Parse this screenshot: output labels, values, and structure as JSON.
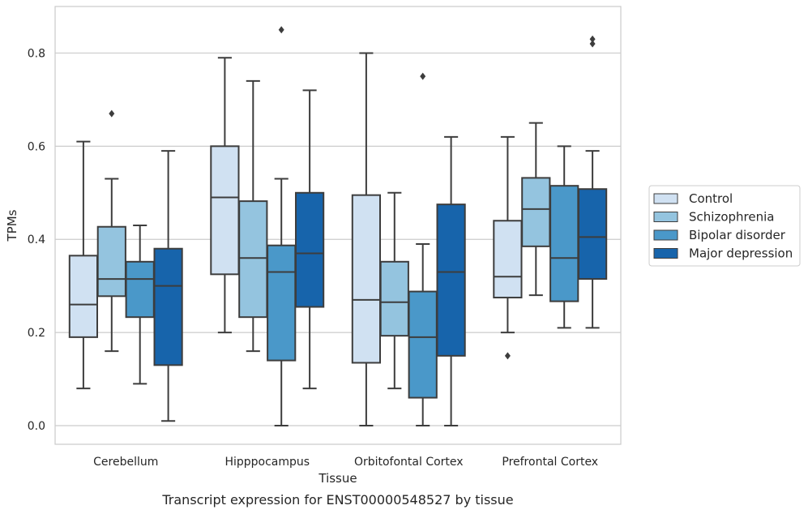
{
  "chart_data": {
    "type": "box",
    "caption": "Transcript expression for ENST00000548527 by tissue",
    "xlabel": "Tissue",
    "ylabel": "TPMs",
    "ylim": [
      -0.04,
      0.9
    ],
    "yticks": [
      0.0,
      0.2,
      0.4,
      0.6,
      0.8
    ],
    "ytick_labels": [
      "0.0",
      "0.2",
      "0.4",
      "0.6",
      "0.8"
    ],
    "grid": "horizontal",
    "legend_position": "right",
    "categories": [
      "Cerebellum",
      "Hipppocampus",
      "Orbitofontal Cortex",
      "Prefrontal Cortex"
    ],
    "series": [
      {
        "name": "Control",
        "color": "#d0e1f2",
        "boxes": [
          {
            "whislo": 0.08,
            "q1": 0.19,
            "med": 0.26,
            "q3": 0.365,
            "whishi": 0.61,
            "fliers": []
          },
          {
            "whislo": 0.2,
            "q1": 0.325,
            "med": 0.49,
            "q3": 0.6,
            "whishi": 0.79,
            "fliers": []
          },
          {
            "whislo": 0.0,
            "q1": 0.135,
            "med": 0.27,
            "q3": 0.495,
            "whishi": 0.8,
            "fliers": []
          },
          {
            "whislo": 0.2,
            "q1": 0.275,
            "med": 0.32,
            "q3": 0.44,
            "whishi": 0.62,
            "fliers": [
              0.15
            ]
          }
        ]
      },
      {
        "name": "Schizophrenia",
        "color": "#94c4df",
        "boxes": [
          {
            "whislo": 0.16,
            "q1": 0.278,
            "med": 0.315,
            "q3": 0.427,
            "whishi": 0.53,
            "fliers": [
              0.67
            ]
          },
          {
            "whislo": 0.16,
            "q1": 0.233,
            "med": 0.36,
            "q3": 0.482,
            "whishi": 0.74,
            "fliers": []
          },
          {
            "whislo": 0.08,
            "q1": 0.193,
            "med": 0.265,
            "q3": 0.352,
            "whishi": 0.5,
            "fliers": []
          },
          {
            "whislo": 0.28,
            "q1": 0.385,
            "med": 0.465,
            "q3": 0.532,
            "whishi": 0.65,
            "fliers": []
          }
        ]
      },
      {
        "name": "Bipolar disorder",
        "color": "#4a98c9",
        "boxes": [
          {
            "whislo": 0.09,
            "q1": 0.233,
            "med": 0.315,
            "q3": 0.352,
            "whishi": 0.43,
            "fliers": []
          },
          {
            "whislo": 0.0,
            "q1": 0.14,
            "med": 0.33,
            "q3": 0.387,
            "whishi": 0.53,
            "fliers": [
              0.85
            ]
          },
          {
            "whislo": 0.0,
            "q1": 0.06,
            "med": 0.19,
            "q3": 0.288,
            "whishi": 0.39,
            "fliers": [
              0.75
            ]
          },
          {
            "whislo": 0.21,
            "q1": 0.267,
            "med": 0.36,
            "q3": 0.515,
            "whishi": 0.6,
            "fliers": []
          }
        ]
      },
      {
        "name": "Major depression",
        "color": "#1764ab",
        "boxes": [
          {
            "whislo": 0.01,
            "q1": 0.13,
            "med": 0.3,
            "q3": 0.38,
            "whishi": 0.59,
            "fliers": []
          },
          {
            "whislo": 0.08,
            "q1": 0.255,
            "med": 0.37,
            "q3": 0.5,
            "whishi": 0.72,
            "fliers": []
          },
          {
            "whislo": 0.0,
            "q1": 0.15,
            "med": 0.33,
            "q3": 0.475,
            "whishi": 0.62,
            "fliers": []
          },
          {
            "whislo": 0.21,
            "q1": 0.315,
            "med": 0.405,
            "q3": 0.508,
            "whishi": 0.59,
            "fliers": [
              0.82,
              0.83
            ]
          }
        ]
      }
    ]
  }
}
